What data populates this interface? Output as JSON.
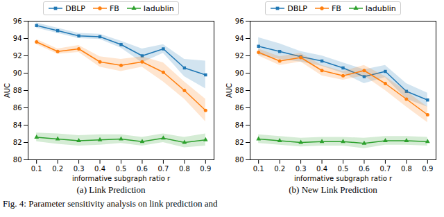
{
  "chart_data": [
    {
      "type": "line",
      "title": "(a) Link Prediction",
      "x_label": "informative subgraph ratio r",
      "y_label": "AUC",
      "x": [
        0.1,
        0.2,
        0.3,
        0.4,
        0.5,
        0.6,
        0.7,
        0.8,
        0.9
      ],
      "xlim": [
        0.06,
        0.94
      ],
      "xticks": [
        0.1,
        0.2,
        0.3,
        0.4,
        0.5,
        0.6,
        0.7,
        0.8,
        0.9
      ],
      "ylim": [
        80,
        96
      ],
      "yticks": [
        80,
        82,
        84,
        86,
        88,
        90,
        92,
        94,
        96
      ],
      "grid": false,
      "legend": "top",
      "series": [
        {
          "name": "DBLP",
          "color": "#1f77b4",
          "marker": "square",
          "values": [
            95.5,
            94.9,
            94.3,
            94.2,
            93.3,
            92.0,
            92.8,
            90.6,
            89.8
          ],
          "errors": [
            0.3,
            0.3,
            0.3,
            0.3,
            0.4,
            0.8,
            0.5,
            1.0,
            1.6
          ]
        },
        {
          "name": "FB",
          "color": "#ff7f0e",
          "marker": "circle",
          "values": [
            93.6,
            92.5,
            92.8,
            91.3,
            90.9,
            91.3,
            90.1,
            88.0,
            85.7
          ],
          "errors": [
            0.3,
            0.3,
            0.4,
            0.6,
            0.7,
            0.6,
            1.1,
            1.0,
            1.3
          ]
        },
        {
          "name": "Iadublin",
          "color": "#2ca02c",
          "marker": "triangle",
          "values": [
            82.6,
            82.4,
            82.2,
            82.3,
            82.4,
            82.1,
            82.5,
            82.0,
            82.3
          ],
          "errors": [
            0.5,
            0.6,
            0.6,
            0.6,
            0.5,
            0.5,
            0.5,
            0.6,
            0.7
          ]
        }
      ]
    },
    {
      "type": "line",
      "title": "(b) New Link Prediction",
      "x_label": "informative subgraph ratio r",
      "y_label": "AUC",
      "x": [
        0.1,
        0.2,
        0.3,
        0.4,
        0.5,
        0.6,
        0.7,
        0.8,
        0.9
      ],
      "xlim": [
        0.06,
        0.94
      ],
      "xticks": [
        0.1,
        0.2,
        0.3,
        0.4,
        0.5,
        0.6,
        0.7,
        0.8,
        0.9
      ],
      "ylim": [
        80,
        96
      ],
      "yticks": [
        80,
        82,
        84,
        86,
        88,
        90,
        92,
        94,
        96
      ],
      "grid": false,
      "legend": "top",
      "series": [
        {
          "name": "DBLP",
          "color": "#1f77b4",
          "marker": "square",
          "values": [
            93.1,
            92.5,
            91.9,
            91.4,
            90.6,
            89.6,
            90.2,
            87.9,
            86.9
          ],
          "errors": [
            1.0,
            0.9,
            0.6,
            0.6,
            0.6,
            0.8,
            0.7,
            0.9,
            0.8
          ]
        },
        {
          "name": "FB",
          "color": "#ff7f0e",
          "marker": "circle",
          "values": [
            92.4,
            91.4,
            91.8,
            90.3,
            89.7,
            90.3,
            88.8,
            87.0,
            85.2
          ],
          "errors": [
            0.4,
            0.5,
            0.5,
            0.6,
            0.5,
            0.6,
            0.8,
            0.9,
            0.9
          ]
        },
        {
          "name": "Iadublin",
          "color": "#2ca02c",
          "marker": "triangle",
          "values": [
            82.4,
            82.2,
            82.0,
            82.1,
            82.1,
            81.9,
            82.2,
            82.2,
            82.1
          ],
          "errors": [
            0.5,
            0.5,
            0.5,
            0.5,
            0.5,
            0.6,
            0.5,
            0.5,
            0.5
          ]
        }
      ]
    }
  ],
  "caption": "Fig. 4: Parameter sensitivity analysis on link prediction and"
}
